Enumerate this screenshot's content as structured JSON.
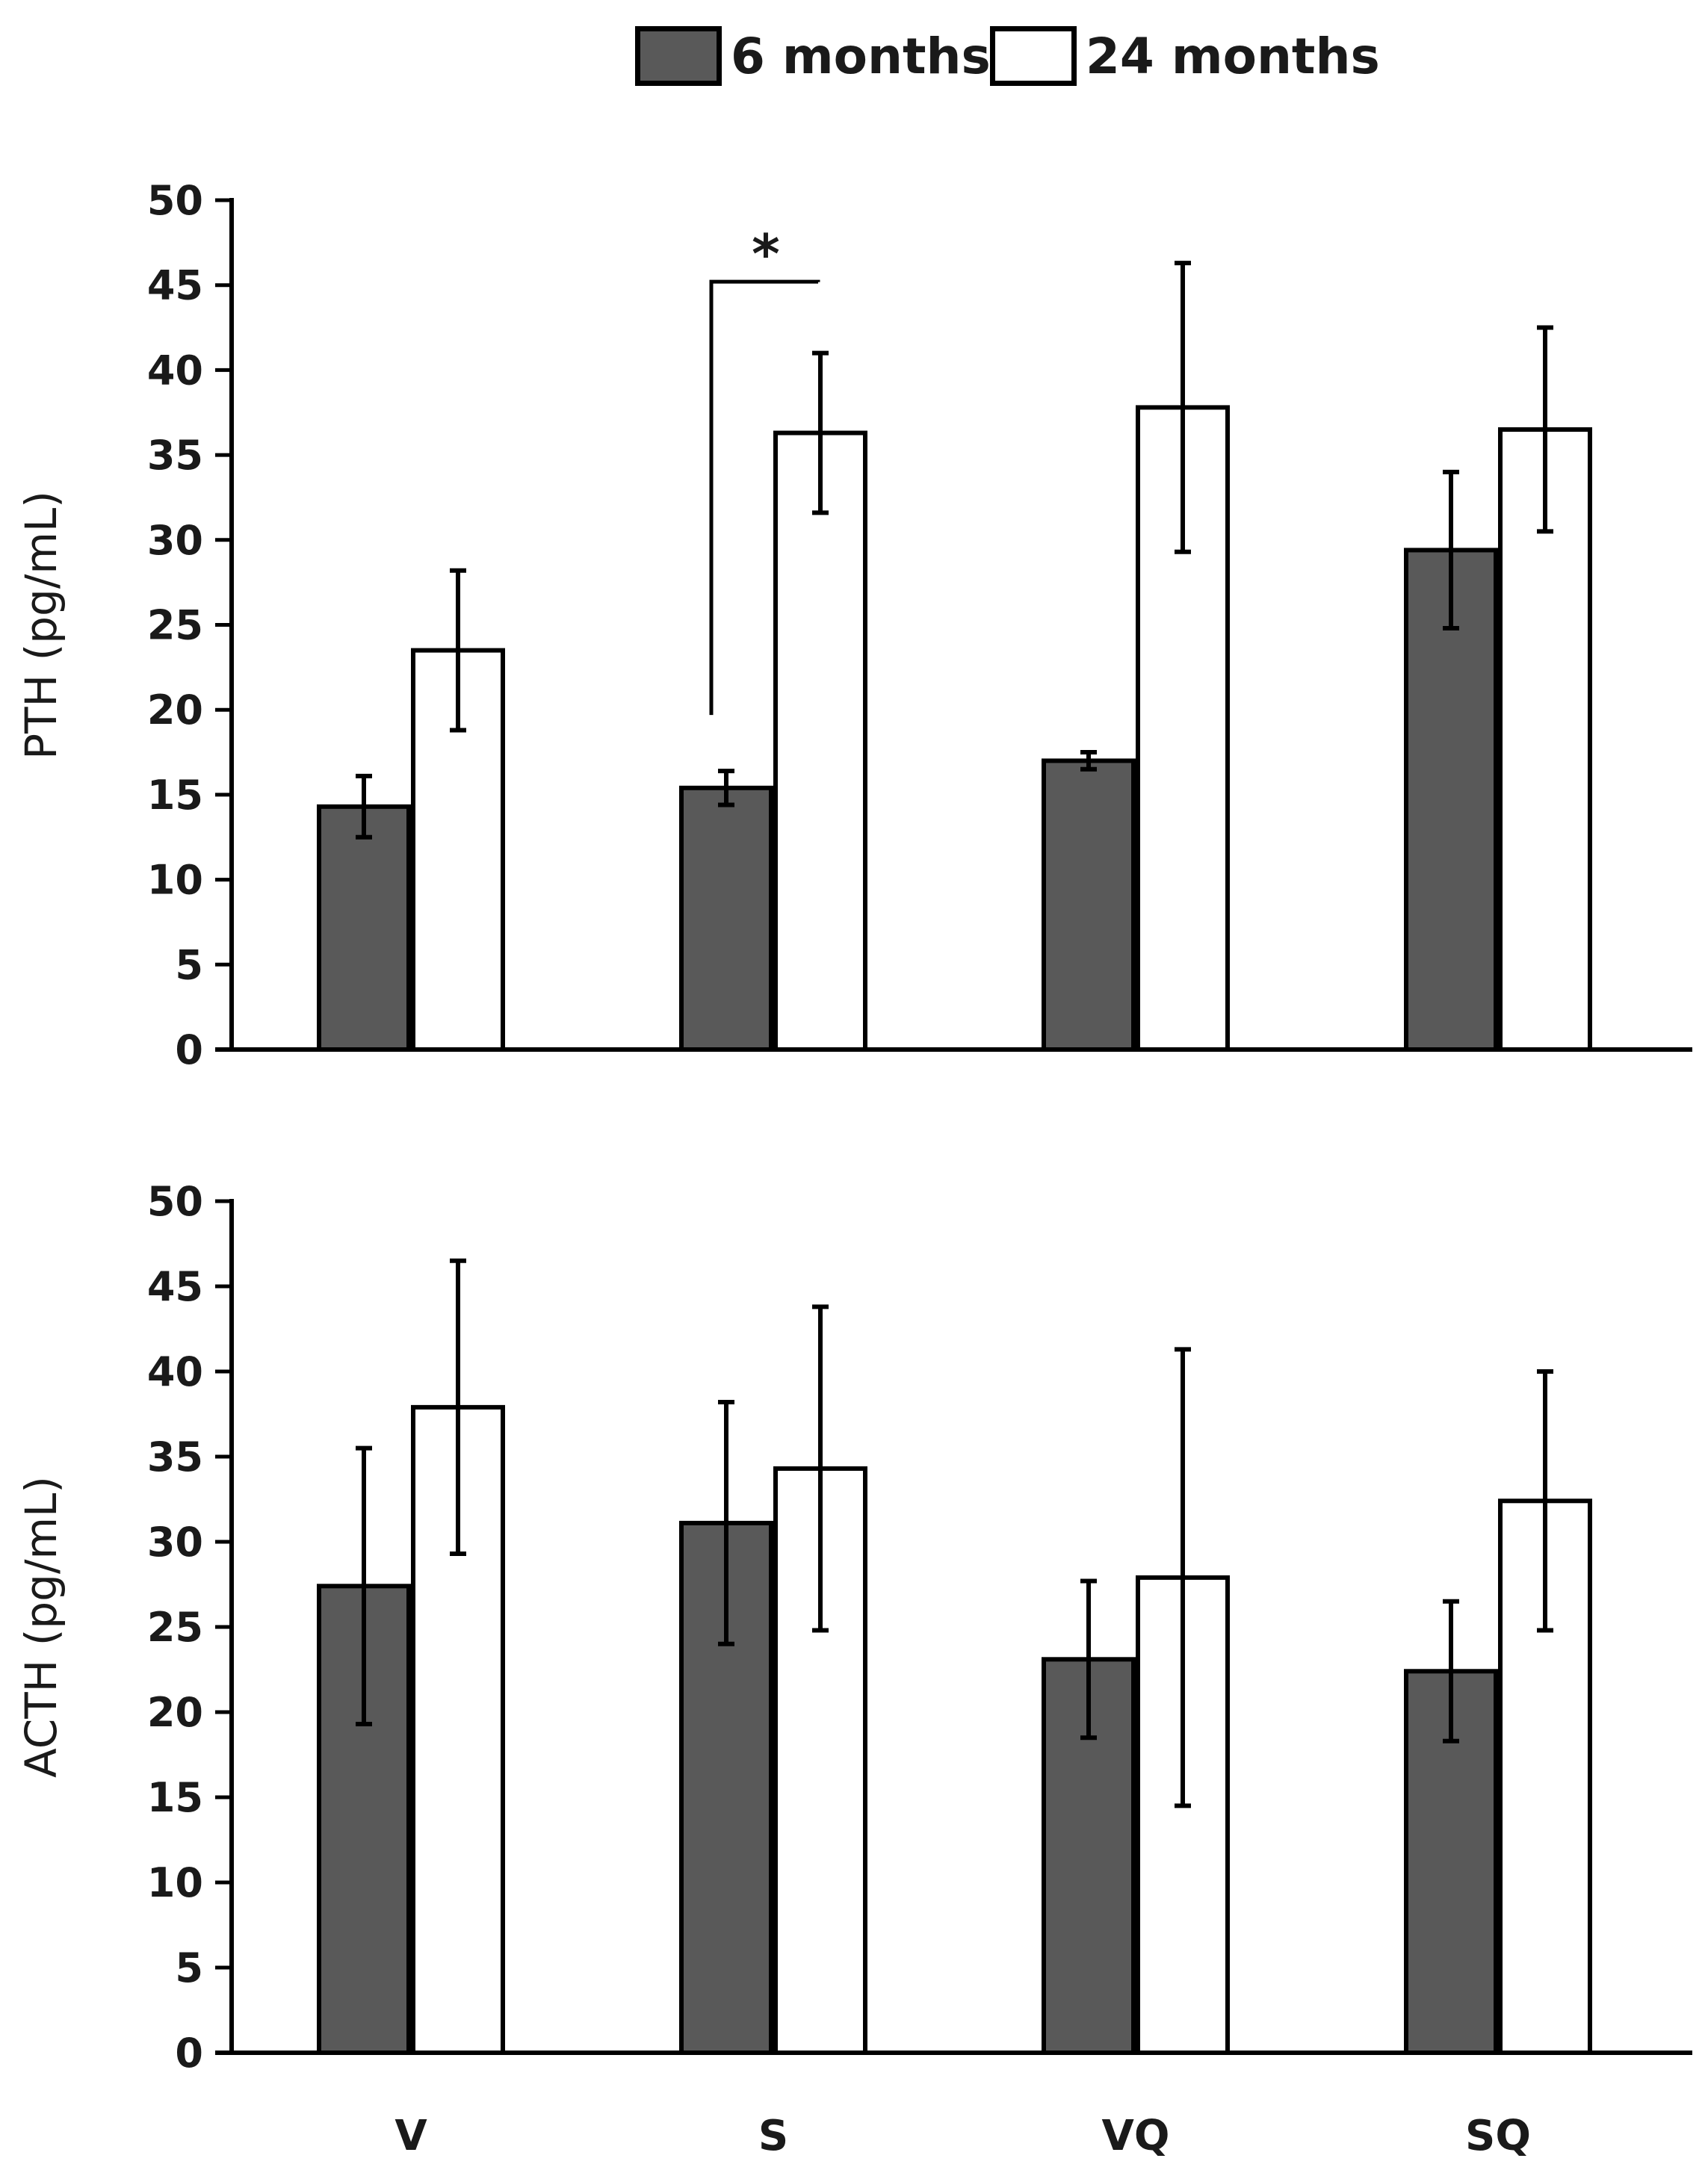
{
  "legend": {
    "series": [
      {
        "name": "6 months",
        "color": "#595959"
      },
      {
        "name": "24 months",
        "color": "#ffffff"
      }
    ]
  },
  "chart_data": [
    {
      "type": "bar",
      "title": "",
      "xlabel": "",
      "ylabel": "PTH (pg/mL)",
      "ylim": [
        0,
        50
      ],
      "yticks": [
        0,
        5,
        10,
        15,
        20,
        25,
        30,
        35,
        40,
        45,
        50
      ],
      "categories": [
        "V",
        "S",
        "VQ",
        "SQ"
      ],
      "show_category_labels": false,
      "series": [
        {
          "name": "6 months",
          "values": [
            14.3,
            15.4,
            17.0,
            29.4
          ],
          "errors": [
            1.8,
            1.0,
            0.5,
            4.6
          ]
        },
        {
          "name": "24 months",
          "values": [
            23.5,
            36.3,
            37.8,
            36.5
          ],
          "errors": [
            4.7,
            4.7,
            8.5,
            6.0
          ]
        }
      ],
      "annotations": [
        {
          "text": "*",
          "category": "S",
          "between": [
            "6 months",
            "24 months"
          ]
        }
      ]
    },
    {
      "type": "bar",
      "title": "",
      "xlabel": "",
      "ylabel": "ACTH (pg/mL)",
      "ylim": [
        0,
        50
      ],
      "yticks": [
        0,
        5,
        10,
        15,
        20,
        25,
        30,
        35,
        40,
        45,
        50
      ],
      "categories": [
        "V",
        "S",
        "VQ",
        "SQ"
      ],
      "show_category_labels": true,
      "series": [
        {
          "name": "6 months",
          "values": [
            27.4,
            31.1,
            23.1,
            22.4
          ],
          "errors": [
            8.1,
            7.1,
            4.6,
            4.1
          ]
        },
        {
          "name": "24 months",
          "values": [
            37.9,
            34.3,
            27.9,
            32.4
          ],
          "errors": [
            8.6,
            9.5,
            13.4,
            7.6
          ]
        }
      ],
      "annotations": []
    }
  ]
}
